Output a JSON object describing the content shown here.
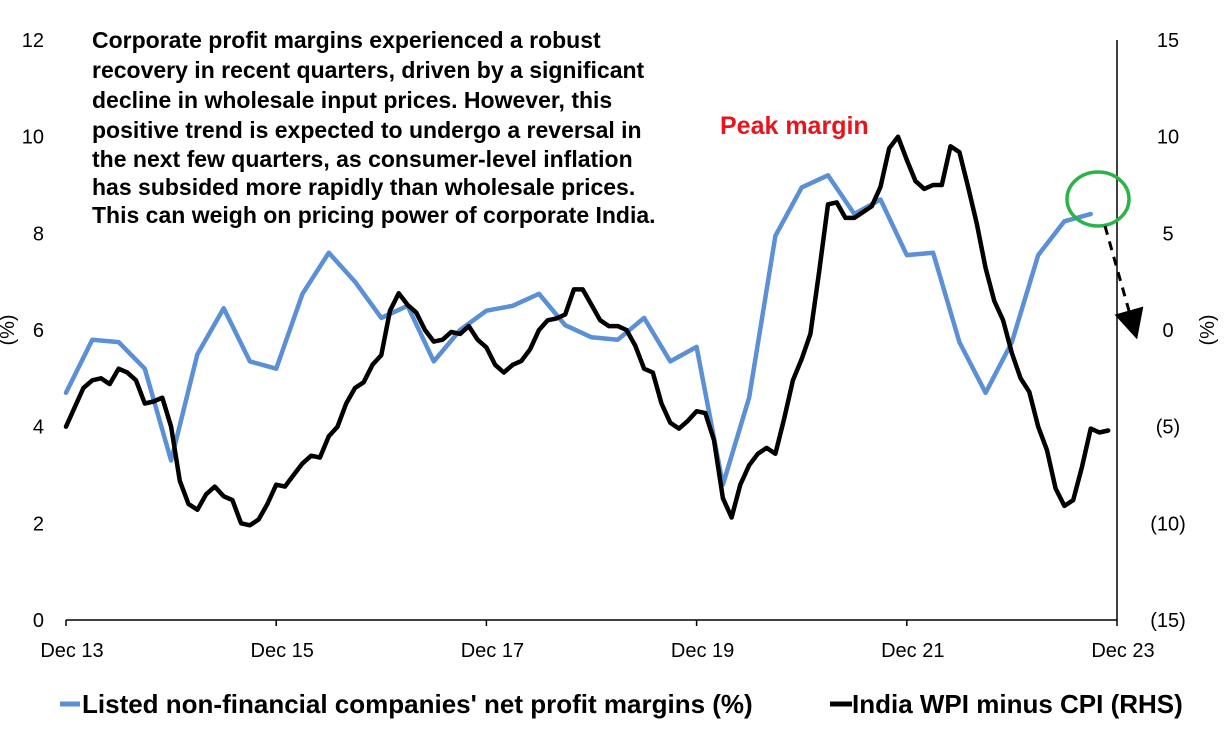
{
  "chart_data": {
    "type": "line",
    "annotation_lines": [
      "Corporate profit margins experienced a robust",
      "recovery in recent quarters, driven by a significant",
      "decline in wholesale input prices. However, this",
      "positive trend is expected to undergo a reversal in",
      "the next few quarters, as consumer-level inflation",
      "has subsided more rapidly than wholesale prices.",
      "This can weigh on pricing power of corporate India."
    ],
    "peak_label": "Peak margin",
    "x_tick_labels": [
      "Dec 13",
      "Dec 15",
      "Dec 17",
      "Dec 19",
      "Dec 21",
      "Dec 23"
    ],
    "x_tick_years": [
      2013.917,
      2015.917,
      2017.917,
      2019.917,
      2021.917,
      2023.917
    ],
    "xlim": [
      2013.917,
      2023.917
    ],
    "y_left": {
      "label": "(%)",
      "lim": [
        0,
        12
      ],
      "ticks": [
        "0",
        "2",
        "4",
        "6",
        "8",
        "10",
        "12"
      ]
    },
    "y_right": {
      "label": "(%)",
      "lim": [
        -15,
        15
      ],
      "ticks": [
        "(15)",
        "(10)",
        "(5)",
        "0",
        "5",
        "10",
        "15"
      ]
    },
    "colors": {
      "margin": "#5B8FD6",
      "wpi": "#000000",
      "peak": "#E8141C",
      "circle": "#2BB34A"
    },
    "series": [
      {
        "name": "Listed non-financial companies' net profit margins (%)",
        "axis": "left",
        "x": [
          2013.917,
          2014.167,
          2014.417,
          2014.667,
          2014.917,
          2015.167,
          2015.417,
          2015.667,
          2015.917,
          2016.167,
          2016.417,
          2016.667,
          2016.917,
          2017.167,
          2017.417,
          2017.667,
          2017.917,
          2018.167,
          2018.417,
          2018.667,
          2018.917,
          2019.167,
          2019.417,
          2019.667,
          2019.917,
          2020.167,
          2020.417,
          2020.667,
          2020.917,
          2021.167,
          2021.417,
          2021.667,
          2021.917,
          2022.167,
          2022.417,
          2022.667,
          2022.917,
          2023.167,
          2023.417,
          2023.667,
          2023.917
        ],
        "values": [
          4.7,
          5.8,
          5.75,
          5.2,
          3.3,
          5.5,
          6.45,
          5.35,
          5.2,
          6.75,
          7.6,
          7.0,
          6.25,
          6.5,
          5.35,
          6.0,
          6.4,
          6.5,
          6.75,
          6.1,
          5.85,
          5.8,
          6.25,
          5.35,
          5.65,
          2.8,
          4.6,
          7.95,
          8.95,
          9.2,
          8.4,
          8.7,
          7.55,
          7.6,
          5.75,
          4.7,
          5.75,
          7.55,
          8.25,
          8.4,
          null
        ]
      },
      {
        "name": "India WPI minus CPI (RHS)",
        "axis": "right",
        "x": [
          2013.917,
          2014.0,
          2014.083,
          2014.167,
          2014.25,
          2014.333,
          2014.417,
          2014.5,
          2014.583,
          2014.667,
          2014.75,
          2014.833,
          2014.917,
          2015.0,
          2015.083,
          2015.167,
          2015.25,
          2015.333,
          2015.417,
          2015.5,
          2015.583,
          2015.667,
          2015.75,
          2015.833,
          2015.917,
          2016.0,
          2016.083,
          2016.167,
          2016.25,
          2016.333,
          2016.417,
          2016.5,
          2016.583,
          2016.667,
          2016.75,
          2016.833,
          2016.917,
          2017.0,
          2017.083,
          2017.167,
          2017.25,
          2017.333,
          2017.417,
          2017.5,
          2017.583,
          2017.667,
          2017.75,
          2017.833,
          2017.917,
          2018.0,
          2018.083,
          2018.167,
          2018.25,
          2018.333,
          2018.417,
          2018.5,
          2018.583,
          2018.667,
          2018.75,
          2018.833,
          2018.917,
          2019.0,
          2019.083,
          2019.167,
          2019.25,
          2019.333,
          2019.417,
          2019.5,
          2019.583,
          2019.667,
          2019.75,
          2019.833,
          2019.917,
          2020.0,
          2020.083,
          2020.167,
          2020.25,
          2020.333,
          2020.417,
          2020.5,
          2020.583,
          2020.667,
          2020.75,
          2020.833,
          2020.917,
          2021.0,
          2021.083,
          2021.167,
          2021.25,
          2021.333,
          2021.417,
          2021.5,
          2021.583,
          2021.667,
          2021.75,
          2021.833,
          2021.917,
          2022.0,
          2022.083,
          2022.167,
          2022.25,
          2022.333,
          2022.417,
          2022.5,
          2022.583,
          2022.667,
          2022.75,
          2022.833,
          2022.917,
          2023.0,
          2023.083,
          2023.167,
          2023.25,
          2023.333,
          2023.417,
          2023.5,
          2023.583,
          2023.667,
          2023.75,
          2023.833
        ],
        "values": [
          -5.0,
          -4.0,
          -3.0,
          -2.6,
          -2.5,
          -2.8,
          -2.0,
          -2.2,
          -2.6,
          -3.8,
          -3.7,
          -3.5,
          -5.0,
          -7.8,
          -9.0,
          -9.3,
          -8.5,
          -8.1,
          -8.6,
          -8.8,
          -10.0,
          -10.1,
          -9.8,
          -9.0,
          -8.0,
          -8.1,
          -7.5,
          -6.9,
          -6.5,
          -6.6,
          -5.5,
          -5.0,
          -3.8,
          -3.0,
          -2.7,
          -1.8,
          -1.3,
          1.0,
          1.9,
          1.3,
          0.9,
          0.0,
          -0.6,
          -0.5,
          -0.1,
          -0.2,
          0.2,
          -0.5,
          -0.9,
          -1.8,
          -2.2,
          -1.8,
          -1.6,
          -1.0,
          0.0,
          0.5,
          0.6,
          0.8,
          2.1,
          2.1,
          1.3,
          0.5,
          0.2,
          0.2,
          0.0,
          -0.8,
          -2.0,
          -2.2,
          -3.8,
          -4.8,
          -5.1,
          -4.7,
          -4.2,
          -4.3,
          -5.7,
          -8.7,
          -9.7,
          -8.0,
          -7.0,
          -6.4,
          -6.1,
          -6.4,
          -4.6,
          -2.6,
          -1.5,
          -0.2,
          3.0,
          6.5,
          6.6,
          5.8,
          5.8,
          6.1,
          6.4,
          7.4,
          9.4,
          10.0,
          8.8,
          7.7,
          7.3,
          7.5,
          7.5,
          9.5,
          9.2,
          7.4,
          5.5,
          3.2,
          1.5,
          0.5,
          -1.2,
          -2.5,
          -3.2,
          -5.0,
          -6.2,
          -8.2,
          -9.1,
          -8.8,
          -7.1,
          -5.1,
          -5.3,
          -5.2
        ]
      }
    ]
  },
  "legend": {
    "margin_label": "Listed non-financial companies' net profit margins (%)",
    "wpi_label": "India WPI minus CPI (RHS)"
  }
}
